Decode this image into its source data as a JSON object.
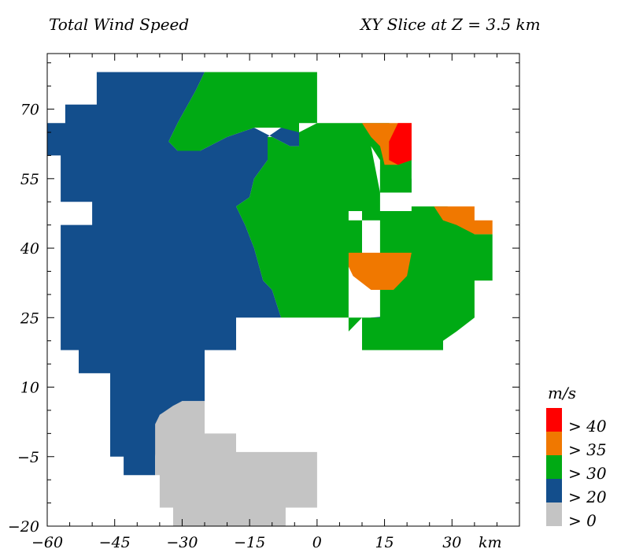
{
  "chart_data": {
    "type": "heatmap",
    "title": "Total Wind Speed",
    "subtitle": "XY Slice at Z = 3.5 km",
    "x_unit": "km",
    "legend_unit": "m/s",
    "xlim": [
      -60,
      45
    ],
    "ylim": [
      -20,
      82
    ],
    "x_ticks": [
      -60,
      -45,
      -30,
      -15,
      0,
      15,
      30
    ],
    "y_ticks": [
      -20,
      -5,
      10,
      25,
      40,
      55,
      70
    ],
    "x_tick_labels": [
      "−60",
      "−45",
      "−30",
      "−15",
      "0",
      "15",
      "30"
    ],
    "y_tick_labels": [
      "−20",
      "−5",
      "10",
      "25",
      "40",
      "55",
      "70"
    ],
    "legend": [
      {
        "label": "> 40",
        "color": "#ff0000"
      },
      {
        "label": "> 35",
        "color": "#f07800"
      },
      {
        "label": "> 30",
        "color": "#00aa14"
      },
      {
        "label": "> 20",
        "color": "#134e8c"
      },
      {
        "label": "> 0",
        "color": "#c4c4c4"
      }
    ],
    "regions": [
      {
        "level": "> 20",
        "color": "#134e8c",
        "points": [
          [
            -49,
            78
          ],
          [
            -25,
            78
          ],
          [
            -27,
            74
          ],
          [
            -31,
            67
          ],
          [
            -33,
            63
          ],
          [
            -31,
            61
          ],
          [
            -26,
            61
          ],
          [
            -20,
            64
          ],
          [
            -14,
            66
          ],
          [
            -10,
            64
          ],
          [
            -6,
            62
          ],
          [
            -4,
            62
          ],
          [
            -4,
            65
          ],
          [
            -4,
            65.5
          ],
          [
            -8,
            66
          ],
          [
            -11,
            64
          ],
          [
            -11,
            59
          ],
          [
            -14,
            55
          ],
          [
            -15,
            51
          ],
          [
            -18,
            49
          ],
          [
            -16,
            45
          ],
          [
            -14,
            40
          ],
          [
            -12,
            33
          ],
          [
            -10,
            31
          ],
          [
            -8,
            25
          ],
          [
            -18,
            25
          ],
          [
            -18,
            18
          ],
          [
            -25,
            18
          ],
          [
            -25,
            7
          ],
          [
            -30,
            7
          ],
          [
            -35,
            4
          ],
          [
            -36,
            -5
          ],
          [
            -36,
            -9
          ],
          [
            -43,
            -9
          ],
          [
            -43,
            -5
          ],
          [
            -46,
            -5
          ],
          [
            -46,
            13
          ],
          [
            -53,
            13
          ],
          [
            -53,
            18
          ],
          [
            -57,
            18
          ],
          [
            -57,
            45
          ],
          [
            -50,
            45
          ],
          [
            -50,
            50
          ],
          [
            -57,
            50
          ],
          [
            -57,
            60
          ],
          [
            -60,
            60
          ],
          [
            -60,
            67
          ],
          [
            -56,
            67
          ],
          [
            -56,
            71
          ],
          [
            -49,
            71
          ]
        ]
      },
      {
        "level": "> 20",
        "color": "#134e8c",
        "points": [
          [
            14,
            57
          ],
          [
            18,
            57
          ],
          [
            20,
            55
          ],
          [
            21,
            55
          ],
          [
            21,
            52
          ],
          [
            14,
            52
          ]
        ]
      },
      {
        "level": "> 20",
        "color": "#134e8c",
        "points": [
          [
            10,
            22
          ],
          [
            12,
            25
          ],
          [
            18,
            25.5
          ],
          [
            24,
            24
          ],
          [
            28,
            20
          ],
          [
            28,
            18
          ],
          [
            10,
            18
          ]
        ]
      },
      {
        "level": "> 0",
        "color": "#c4c4c4",
        "points": [
          [
            -25,
            7
          ],
          [
            -25,
            0
          ],
          [
            -18,
            0
          ],
          [
            -18,
            -4
          ],
          [
            0,
            -4
          ],
          [
            0,
            -16
          ],
          [
            -7,
            -16
          ],
          [
            -7,
            -20
          ],
          [
            -32,
            -20
          ],
          [
            -32,
            -16
          ],
          [
            -35,
            -16
          ],
          [
            -35,
            -9
          ],
          [
            -36,
            -9
          ],
          [
            -36,
            -5
          ],
          [
            -36,
            2
          ],
          [
            -35,
            4
          ],
          [
            -32,
            6
          ],
          [
            -30,
            7
          ]
        ]
      },
      {
        "level": "> 30",
        "color": "#00aa14",
        "points": [
          [
            -25,
            78
          ],
          [
            0,
            78
          ],
          [
            0,
            67
          ],
          [
            10,
            67
          ],
          [
            12,
            62
          ],
          [
            14,
            59
          ],
          [
            14,
            52
          ],
          [
            21,
            52
          ],
          [
            21,
            57
          ],
          [
            21,
            60
          ],
          [
            21,
            67
          ],
          [
            21,
            48
          ],
          [
            10,
            48
          ],
          [
            10,
            36
          ],
          [
            7,
            36
          ],
          [
            7,
            46
          ],
          [
            14,
            46
          ],
          [
            14,
            25
          ],
          [
            10,
            25
          ],
          [
            7,
            22
          ],
          [
            10,
            22
          ],
          [
            10,
            18
          ],
          [
            28,
            18
          ],
          [
            28,
            20
          ],
          [
            31,
            22
          ],
          [
            35,
            25
          ],
          [
            35,
            33
          ],
          [
            39,
            33
          ],
          [
            39,
            43
          ],
          [
            41,
            43
          ],
          [
            35,
            43
          ],
          [
            32,
            46
          ],
          [
            29,
            49
          ],
          [
            25,
            49
          ],
          [
            21,
            49
          ],
          [
            21,
            48
          ],
          [
            21,
            62
          ],
          [
            19,
            66
          ],
          [
            16,
            67
          ],
          [
            14,
            67
          ],
          [
            10,
            67
          ],
          [
            0,
            67
          ],
          [
            -4,
            67
          ],
          [
            -4,
            65.5
          ],
          [
            -4,
            62
          ],
          [
            -6,
            62
          ],
          [
            -10,
            64
          ],
          [
            -11,
            64
          ],
          [
            -11,
            59
          ],
          [
            -14,
            55
          ],
          [
            -15,
            51
          ],
          [
            -18,
            49
          ],
          [
            -16,
            45
          ],
          [
            -14,
            40
          ],
          [
            -12,
            33
          ],
          [
            -10,
            31
          ],
          [
            -8,
            25
          ],
          [
            -3,
            25
          ],
          [
            3,
            25
          ],
          [
            7,
            25
          ],
          [
            7,
            22
          ],
          [
            10,
            22
          ],
          [
            10,
            25
          ],
          [
            7,
            25
          ],
          [
            7,
            36
          ],
          [
            7,
            48
          ],
          [
            14,
            48
          ],
          [
            14,
            52
          ],
          [
            12,
            62
          ],
          [
            10,
            67
          ],
          [
            0,
            67
          ],
          [
            -4,
            65
          ],
          [
            -8,
            66
          ],
          [
            -14,
            66
          ],
          [
            -20,
            64
          ],
          [
            -26,
            61
          ],
          [
            -31,
            61
          ],
          [
            -33,
            63
          ],
          [
            -31,
            67
          ],
          [
            -27,
            74
          ]
        ]
      },
      {
        "level": "> 35",
        "color": "#f07800",
        "points": [
          [
            10,
            67
          ],
          [
            21,
            67
          ],
          [
            21,
            59
          ],
          [
            18,
            58
          ],
          [
            15,
            58
          ],
          [
            14,
            62
          ],
          [
            12,
            64
          ]
        ]
      },
      {
        "level": "> 35",
        "color": "#f07800",
        "points": [
          [
            7,
            39
          ],
          [
            21,
            39
          ],
          [
            20,
            34
          ],
          [
            17,
            31
          ],
          [
            12,
            31
          ],
          [
            8,
            34
          ],
          [
            7,
            36
          ]
        ]
      },
      {
        "level": "> 35",
        "color": "#f07800",
        "points": [
          [
            26,
            49
          ],
          [
            35,
            49
          ],
          [
            35,
            46
          ],
          [
            39,
            46
          ],
          [
            39,
            43
          ],
          [
            35,
            43
          ],
          [
            31,
            45
          ],
          [
            28,
            46
          ]
        ]
      },
      {
        "level": "> 40",
        "color": "#ff0000",
        "points": [
          [
            18,
            67
          ],
          [
            21,
            67
          ],
          [
            21,
            59
          ],
          [
            18,
            58
          ],
          [
            16,
            59
          ],
          [
            16,
            63
          ]
        ]
      }
    ]
  }
}
